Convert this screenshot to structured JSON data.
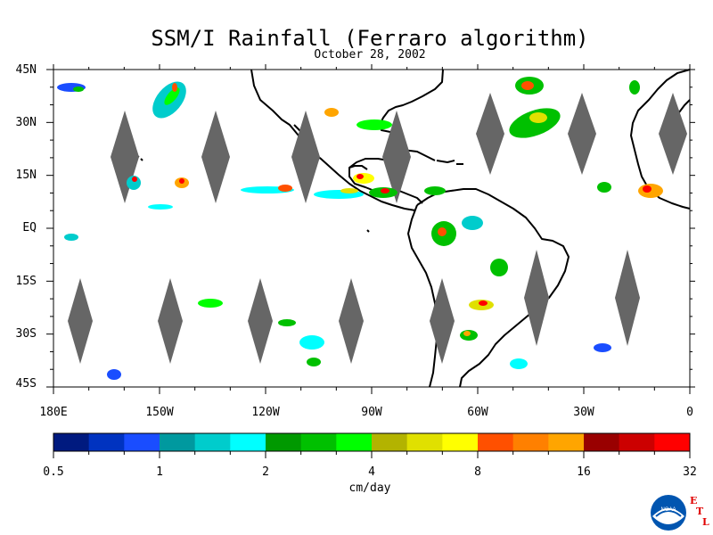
{
  "title": "SSM/I Rainfall (Ferraro algorithm)",
  "subtitle": "October 28, 2002",
  "map": {
    "lat_labels": [
      "45N",
      "30N",
      "15N",
      "EQ",
      "15S",
      "30S",
      "45S"
    ],
    "lon_labels": [
      "180E",
      "150W",
      "120W",
      "90W",
      "60W",
      "30W",
      "0"
    ],
    "missing_color": "#666666",
    "coastline_color": "#000000",
    "land_color": "#ffffff",
    "regions": [
      "Pacific Ocean",
      "Atlantic Ocean",
      "North America",
      "South America",
      "Africa"
    ]
  },
  "colorbar": {
    "units": "cm/day",
    "tick_labels": [
      "0.5",
      "1",
      "2",
      "4",
      "8",
      "16",
      "32"
    ],
    "colors": [
      "#001a7f",
      "#0033c0",
      "#1a4dff",
      "#00999f",
      "#00cccc",
      "#00ffff",
      "#009900",
      "#00c000",
      "#00ff00",
      "#b3b300",
      "#e0e000",
      "#ffff00",
      "#ff5000",
      "#ff8000",
      "#ffa500",
      "#990000",
      "#cc0000",
      "#ff0000"
    ]
  },
  "logo": {
    "name": "NOAA",
    "letters": [
      "E",
      "T",
      "L"
    ]
  }
}
